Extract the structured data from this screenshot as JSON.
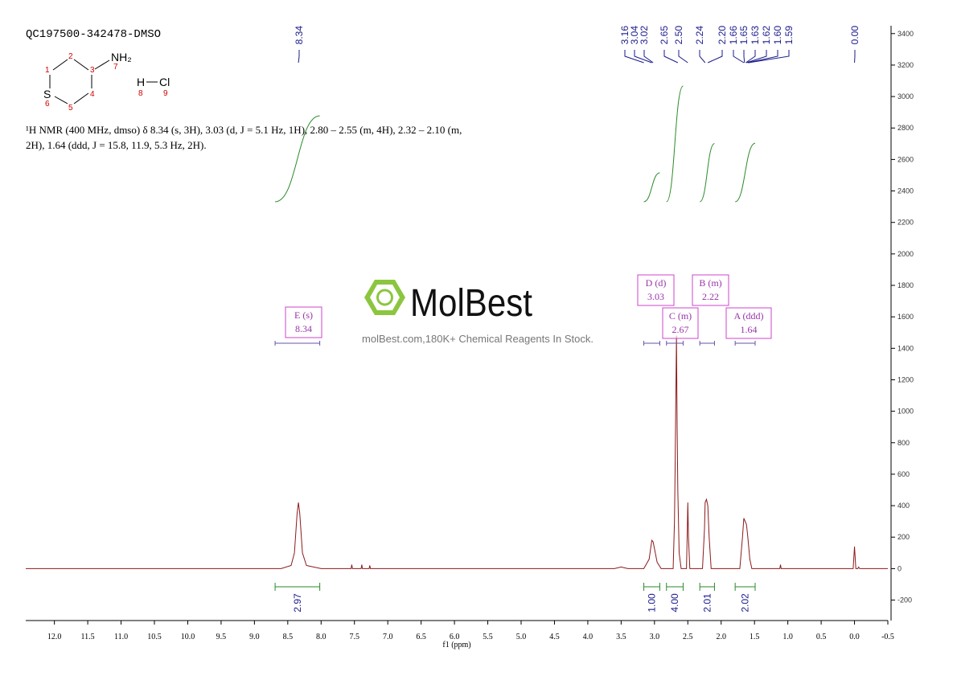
{
  "title": "QC197500-342478-DMSO",
  "structure": {
    "atoms": [
      "NH₂",
      "S",
      "H",
      "Cl"
    ],
    "numbers": [
      "1",
      "2",
      "3",
      "4",
      "5",
      "6",
      "7",
      "8",
      "9"
    ]
  },
  "description": "¹H NMR (400 MHz, dmso) δ 8.34 (s, 3H), 3.03 (d, J = 5.1 Hz, 1H), 2.80 – 2.55 (m, 4H), 2.32 – 2.10 (m, 2H), 1.64 (ddd, J = 15.8, 11.9, 5.3 Hz, 2H).",
  "watermark": {
    "logo": "MolBest",
    "tagline": "molBest.com,180K+ Chemical Reagents In Stock."
  },
  "chart_data": {
    "type": "line",
    "x_label": "f1 (ppm)",
    "xlim": [
      12.43,
      -0.5
    ],
    "ylim": [
      -330,
      3450
    ],
    "xticks": [
      {
        "value": 12,
        "label": "12.0"
      },
      11.5,
      {
        "value": 11,
        "label": "11.0"
      },
      10.5,
      {
        "value": 10,
        "label": "10.0"
      },
      9.5,
      {
        "value": 9,
        "label": "9.0"
      },
      8.5,
      {
        "value": 8,
        "label": "8.0"
      },
      7.5,
      {
        "value": 7,
        "label": "7.0"
      },
      6.5,
      {
        "value": 6,
        "label": "6.0"
      },
      5.5,
      {
        "value": 5,
        "label": "5.0"
      },
      4.5,
      {
        "value": 4,
        "label": "4.0"
      },
      3.5,
      {
        "value": 3,
        "label": "3.0"
      },
      2.5,
      {
        "value": 2,
        "label": "2.0"
      },
      1.5,
      {
        "value": 1,
        "label": "1.0"
      },
      0.5,
      {
        "value": 0,
        "label": "0.0"
      },
      -0.5
    ],
    "yticks": [
      -200,
      0,
      200,
      400,
      600,
      800,
      1000,
      1200,
      1400,
      1600,
      1800,
      2000,
      2200,
      2400,
      2600,
      2800,
      3000,
      3200,
      3400
    ],
    "x": [
      12.43,
      8.6,
      8.45,
      8.4,
      8.36,
      8.34,
      8.32,
      8.28,
      8.22,
      8.0,
      7.55,
      7.54,
      7.53,
      7.4,
      7.39,
      7.38,
      7.28,
      7.27,
      7.26,
      3.6,
      3.5,
      3.4,
      3.16,
      3.08,
      3.04,
      3.02,
      2.96,
      2.9,
      2.72,
      2.7,
      2.69,
      2.67,
      2.66,
      2.65,
      2.63,
      2.6,
      2.52,
      2.51,
      2.5,
      2.49,
      2.47,
      2.28,
      2.25,
      2.24,
      2.22,
      2.2,
      2.18,
      2.15,
      1.72,
      1.68,
      1.66,
      1.64,
      1.62,
      1.6,
      1.57,
      1.54,
      1.12,
      1.11,
      1.1,
      0.02,
      0,
      -0.02,
      -0.05,
      -0.06,
      -0.08,
      -0.5
    ],
    "series": [
      {
        "color": "#8b1a1a",
        "values": [
          0,
          0,
          20,
          100,
          350,
          420,
          350,
          100,
          20,
          0,
          0,
          25,
          0,
          0,
          25,
          0,
          0,
          20,
          0,
          0,
          10,
          0,
          0,
          60,
          180,
          170,
          40,
          0,
          0,
          300,
          650,
          1480,
          900,
          500,
          100,
          0,
          0,
          200,
          420,
          200,
          0,
          0,
          250,
          420,
          440,
          400,
          200,
          0,
          0,
          200,
          320,
          300,
          280,
          200,
          60,
          0,
          0,
          25,
          0,
          0,
          140,
          0,
          0,
          10,
          0,
          0
        ]
      }
    ],
    "peaks": [
      8.34,
      3.16,
      3.04,
      3.02,
      2.65,
      {
        "value": 2.5,
        "label": "2.50"
      },
      2.24,
      {
        "value": 2.2,
        "label": "2.20"
      },
      1.66,
      1.65,
      1.63,
      1.62,
      {
        "value": 1.6,
        "label": "1.60"
      },
      1.59,
      {
        "value": 0,
        "label": "0.00"
      }
    ],
    "integrals": [
      {
        "value": 2.97,
        "range": [
          8.69,
          8.02
        ]
      },
      {
        "value": {
          "value": 1,
          "label": "1.00"
        },
        "range": [
          3.16,
          2.92
        ]
      },
      {
        "value": {
          "value": 4,
          "label": "4.00"
        },
        "range": [
          2.82,
          2.57
        ]
      },
      {
        "value": 2.01,
        "range": [
          2.32,
          2.1
        ]
      },
      {
        "value": 2.02,
        "range": [
          1.79,
          1.49
        ]
      }
    ],
    "multiplets": [
      {
        "label": "E (s)",
        "shift": 8.34
      },
      {
        "label": "D (d)",
        "shift": 3.03
      },
      {
        "label": "C (m)",
        "shift": 2.67
      },
      {
        "label": "B (m)",
        "shift": 2.22
      },
      {
        "label": "A (ddd)",
        "shift": 1.64
      }
    ]
  }
}
